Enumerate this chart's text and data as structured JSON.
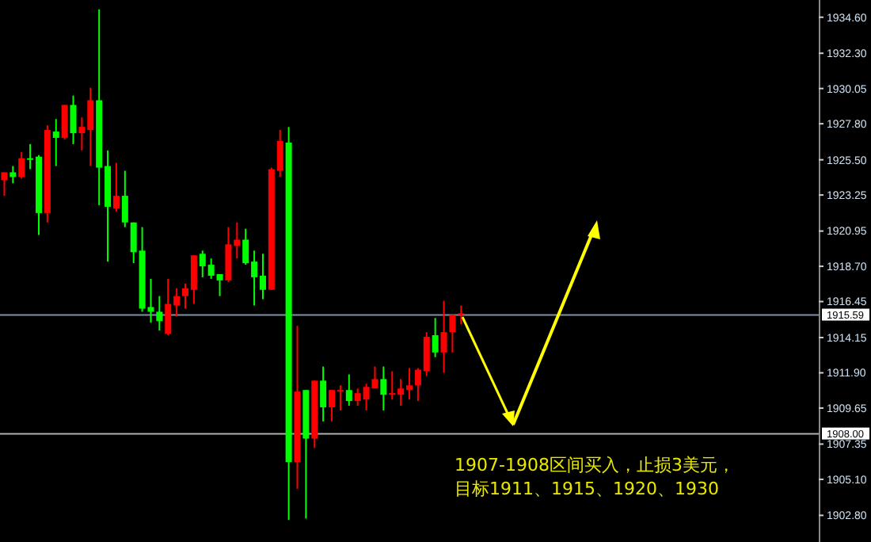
{
  "chart_data": {
    "type": "candlestick",
    "categories": [
      null,
      null,
      null,
      null,
      null,
      null,
      null,
      null,
      null,
      null,
      null,
      null,
      null,
      null,
      null,
      null,
      null,
      null,
      null,
      null,
      null,
      null,
      null,
      null,
      null,
      null,
      null,
      null,
      null,
      null,
      null,
      null,
      null,
      null,
      null,
      null,
      null,
      null,
      null,
      null,
      null,
      null,
      null,
      null,
      null,
      null,
      null,
      null,
      null,
      null,
      null,
      null,
      null,
      null,
      null,
      null,
      null,
      null,
      null,
      null,
      null,
      null,
      null,
      null,
      null,
      null,
      null,
      null,
      null,
      null,
      null,
      null,
      null,
      null,
      null,
      null,
      null,
      null,
      null,
      null,
      null,
      null,
      null,
      null,
      null,
      null,
      null,
      null,
      null,
      null,
      null,
      null,
      null,
      null,
      null
    ],
    "ohlc": [
      [
        1924.2,
        1924.7,
        1923.2,
        1924.7
      ],
      [
        1924.7,
        1925.1,
        1924.0,
        1924.4
      ],
      [
        1924.4,
        1926.0,
        1924.3,
        1925.6
      ],
      [
        1925.6,
        1926.5,
        1924.9,
        1925.5
      ],
      [
        1925.7,
        1925.8,
        1920.7,
        1922.1
      ],
      [
        1922.1,
        1927.7,
        1921.5,
        1927.4
      ],
      [
        1927.3,
        1928.1,
        1925.1,
        1926.9
      ],
      [
        1926.9,
        1929.0,
        1926.8,
        1929.0
      ],
      [
        1929.0,
        1929.6,
        1926.5,
        1927.2
      ],
      [
        1927.2,
        1928.2,
        1926.1,
        1927.6
      ],
      [
        1927.4,
        1930.1,
        1925.1,
        1929.3
      ],
      [
        1929.3,
        1935.1,
        1922.6,
        1925.0
      ],
      [
        1925.1,
        1926.1,
        1919.0,
        1922.5
      ],
      [
        1922.4,
        1925.3,
        1922.2,
        1923.2
      ],
      [
        1923.2,
        1924.8,
        1921.2,
        1921.5
      ],
      [
        1921.5,
        1921.5,
        1918.9,
        1919.6
      ],
      [
        1919.7,
        1921.2,
        1915.8,
        1916.0
      ],
      [
        1916.1,
        1917.9,
        1915.1,
        1915.8
      ],
      [
        1915.8,
        1916.8,
        1914.6,
        1915.2
      ],
      [
        1914.4,
        1917.9,
        1914.3,
        1916.3
      ],
      [
        1916.2,
        1917.3,
        1915.5,
        1916.8
      ],
      [
        1916.8,
        1917.6,
        1916.0,
        1917.3
      ],
      [
        1917.2,
        1919.4,
        1916.3,
        1919.4
      ],
      [
        1919.5,
        1919.7,
        1918.0,
        1918.7
      ],
      [
        1918.8,
        1919.2,
        1917.9,
        1918.1
      ],
      [
        1918.2,
        1918.2,
        1916.8,
        1917.8
      ],
      [
        1917.8,
        1921.2,
        1917.7,
        1920.1
      ],
      [
        1920.0,
        1921.5,
        1919.2,
        1920.4
      ],
      [
        1920.4,
        1921.1,
        1918.8,
        1918.9
      ],
      [
        1919.0,
        1919.7,
        1916.2,
        1918.0
      ],
      [
        1918.1,
        1919.5,
        1916.6,
        1917.2
      ],
      [
        1917.2,
        1925.0,
        1917.2,
        1924.9
      ],
      [
        1924.8,
        1927.4,
        1924.4,
        1926.7
      ],
      [
        1926.6,
        1927.6,
        1902.5,
        1906.2
      ],
      [
        1906.2,
        1914.9,
        1904.5,
        1910.7
      ],
      [
        1910.8,
        1910.8,
        1902.6,
        1907.7
      ],
      [
        1907.7,
        1911.4,
        1907.1,
        1911.4
      ],
      [
        1911.4,
        1912.3,
        1908.8,
        1909.7
      ],
      [
        1909.7,
        1910.8,
        1908.8,
        1910.8
      ],
      [
        1910.7,
        1911.1,
        1909.5,
        1910.8
      ],
      [
        1910.8,
        1911.8,
        1909.8,
        1910.1
      ],
      [
        1910.1,
        1910.9,
        1909.8,
        1910.6
      ],
      [
        1910.2,
        1911.2,
        1909.5,
        1911.0
      ],
      [
        1910.9,
        1912.3,
        1910.9,
        1911.5
      ],
      [
        1911.5,
        1912.3,
        1909.5,
        1910.5
      ],
      [
        1910.5,
        1912.0,
        1910.2,
        1910.6
      ],
      [
        1910.5,
        1911.5,
        1909.8,
        1910.9
      ],
      [
        1910.8,
        1912.2,
        1910.2,
        1911.1
      ],
      [
        1911.1,
        1912.2,
        1910.1,
        1912.1
      ],
      [
        1912.0,
        1914.5,
        1911.7,
        1914.2
      ],
      [
        1914.3,
        1915.4,
        1912.9,
        1913.2
      ],
      [
        1913.2,
        1916.5,
        1911.9,
        1914.5
      ],
      [
        1914.5,
        1915.6,
        1913.2,
        1915.6
      ],
      [
        1915.6,
        1916.2,
        1915.0,
        1915.7
      ],
      null,
      null,
      null,
      null,
      null,
      null,
      null,
      null,
      null,
      null,
      null,
      null,
      null,
      null,
      null,
      null,
      null,
      null,
      null,
      null,
      null,
      null,
      null,
      null,
      null,
      null,
      null,
      null,
      null,
      null,
      null,
      null,
      null,
      null,
      null,
      null,
      null,
      null,
      null,
      null,
      null
    ],
    "colors": [
      "#ff0000",
      "#00ff00",
      "#ff0000",
      "#00ff00",
      "#00ff00",
      "#ff0000",
      "#00ff00",
      "#ff0000",
      "#00ff00",
      "#ff0000",
      "#ff0000",
      "#00ff00",
      "#00ff00",
      "#ff0000",
      "#00ff00",
      "#00ff00",
      "#00ff00",
      "#00ff00",
      "#00ff00",
      "#ff0000",
      "#ff0000",
      "#ff0000",
      "#ff0000",
      "#00ff00",
      "#00ff00",
      "#00ff00",
      "#ff0000",
      "#ff0000",
      "#00ff00",
      "#00ff00",
      "#00ff00",
      "#ff0000",
      "#ff0000",
      "#00ff00",
      "#ff0000",
      "#00ff00",
      "#ff0000",
      "#00ff00",
      "#ff0000",
      "#ff0000",
      "#00ff00",
      "#ff0000",
      "#ff0000",
      "#ff0000",
      "#00ff00",
      "#ff0000",
      "#ff0000",
      "#ff0000",
      "#ff0000",
      "#ff0000",
      "#00ff00",
      "#ff0000",
      "#ff0000",
      "#ff0000",
      null,
      null,
      null,
      null,
      null,
      null,
      null,
      null,
      null,
      null,
      null,
      null,
      null,
      null,
      null,
      null,
      null,
      null,
      null,
      null,
      null,
      null,
      null,
      null,
      null,
      null,
      null,
      null,
      null,
      null,
      null,
      null,
      null,
      null,
      null,
      null,
      null,
      null,
      null,
      null,
      null
    ],
    "ylim": [
      1901.1,
      1935.7
    ],
    "yticks": [
      {
        "value": 1934.6,
        "label": "1934.60"
      },
      {
        "value": 1932.3,
        "label": "1932.30"
      },
      1930.05,
      {
        "value": 1927.8,
        "label": "1927.80"
      },
      {
        "value": 1925.5,
        "label": "1925.50"
      },
      1923.25,
      1920.95,
      {
        "value": 1918.7,
        "label": "1918.70"
      },
      {
        "value": 1916.45,
        "label": "1916.45"
      },
      {
        "value": 1914.15,
        "label": "1914.15"
      },
      {
        "value": 1911.9,
        "label": "1911.90"
      },
      {
        "value": 1909.65,
        "label": "1909.65"
      },
      {
        "value": 1907.35,
        "label": "1907.35"
      },
      {
        "value": 1905.1,
        "label": "1905.10"
      },
      {
        "value": 1902.8,
        "label": "1902.80"
      }
    ],
    "ref_lines": [
      {
        "axis": "y",
        "value": 1915.59,
        "label": "1915.59",
        "color": "#8090a8"
      },
      {
        "axis": "y",
        "value": 1908.0,
        "label": "1908.00",
        "color": "#b0b0b0"
      }
    ],
    "annotations": [
      "1907-1908区间买入，止损3美元，",
      "目标1911、1915、1920、1930"
    ],
    "grid": false
  }
}
